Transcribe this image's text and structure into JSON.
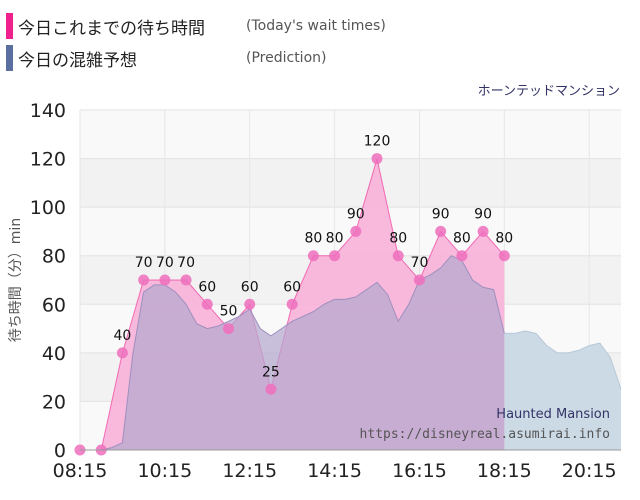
{
  "legend": {
    "today_label": "今日これまでの待ち時間",
    "today_note": "(Today's wait times)",
    "prediction_label": "今日の混雑予想",
    "prediction_note": "(Prediction)"
  },
  "attraction_title": "ホーンテッドマンション",
  "watermark": {
    "name": "Haunted Mansion",
    "url": "https://disneyreal.asumirai.info"
  },
  "colors": {
    "today": "#f0218f",
    "today_fill": "#f7b1d9",
    "today_point": "#ee6fbd",
    "prediction": "#5a6fa0",
    "prediction_fill": "#b4a8cf",
    "prediction_fill_after": "#ccdae6"
  },
  "chart_data": {
    "type": "area",
    "xlabel": "",
    "ylabel": "待ち時間（分）min",
    "ylim": [
      0,
      140
    ],
    "yticks": [
      0,
      20,
      40,
      60,
      80,
      100,
      120,
      140
    ],
    "xticks": [
      "08:15",
      "10:15",
      "12:15",
      "14:15",
      "16:15",
      "18:15",
      "20:15"
    ],
    "xlim": [
      "08:15",
      "21:00"
    ],
    "series": [
      {
        "name": "今日これまでの待ち時間",
        "x": [
          "08:15",
          "08:45",
          "09:15",
          "09:45",
          "10:15",
          "10:45",
          "11:15",
          "11:45",
          "12:15",
          "12:45",
          "13:15",
          "13:45",
          "14:15",
          "14:45",
          "15:15",
          "15:45",
          "16:15",
          "16:45",
          "17:15",
          "17:45",
          "18:15"
        ],
        "values": [
          0,
          0,
          40,
          70,
          70,
          70,
          60,
          50,
          60,
          25,
          60,
          80,
          80,
          90,
          120,
          80,
          70,
          90,
          80,
          90,
          80
        ]
      },
      {
        "name": "今日の混雑予想",
        "x": [
          "08:15",
          "08:45",
          "09:00",
          "09:15",
          "09:30",
          "09:45",
          "10:00",
          "10:15",
          "10:30",
          "10:45",
          "11:00",
          "11:15",
          "11:30",
          "11:45",
          "12:00",
          "12:15",
          "12:30",
          "12:45",
          "13:00",
          "13:15",
          "13:30",
          "13:45",
          "14:00",
          "14:15",
          "14:30",
          "14:45",
          "15:00",
          "15:15",
          "15:30",
          "15:45",
          "16:00",
          "16:15",
          "16:30",
          "16:45",
          "17:00",
          "17:15",
          "17:30",
          "17:45",
          "18:00",
          "18:15",
          "18:30",
          "18:45",
          "19:00",
          "19:15",
          "19:30",
          "19:45",
          "20:00",
          "20:15",
          "20:30",
          "20:45",
          "21:00"
        ],
        "values": [
          0,
          0,
          1,
          3,
          40,
          65,
          68,
          68,
          65,
          60,
          52,
          50,
          51,
          53,
          55,
          58,
          50,
          47,
          50,
          53,
          55,
          57,
          60,
          62,
          62,
          63,
          66,
          69,
          64,
          53,
          60,
          70,
          72,
          75,
          80,
          78,
          70,
          67,
          66,
          48,
          48,
          49,
          48,
          43,
          40,
          40,
          41,
          43,
          44,
          38,
          25
        ]
      }
    ],
    "point_labels": [
      "",
      "",
      "40",
      "70",
      "70",
      "70",
      "60",
      "50",
      "60",
      "25",
      "60",
      "80",
      "80",
      "90",
      "120",
      "80",
      "70",
      "90",
      "80",
      "90",
      "80"
    ]
  }
}
